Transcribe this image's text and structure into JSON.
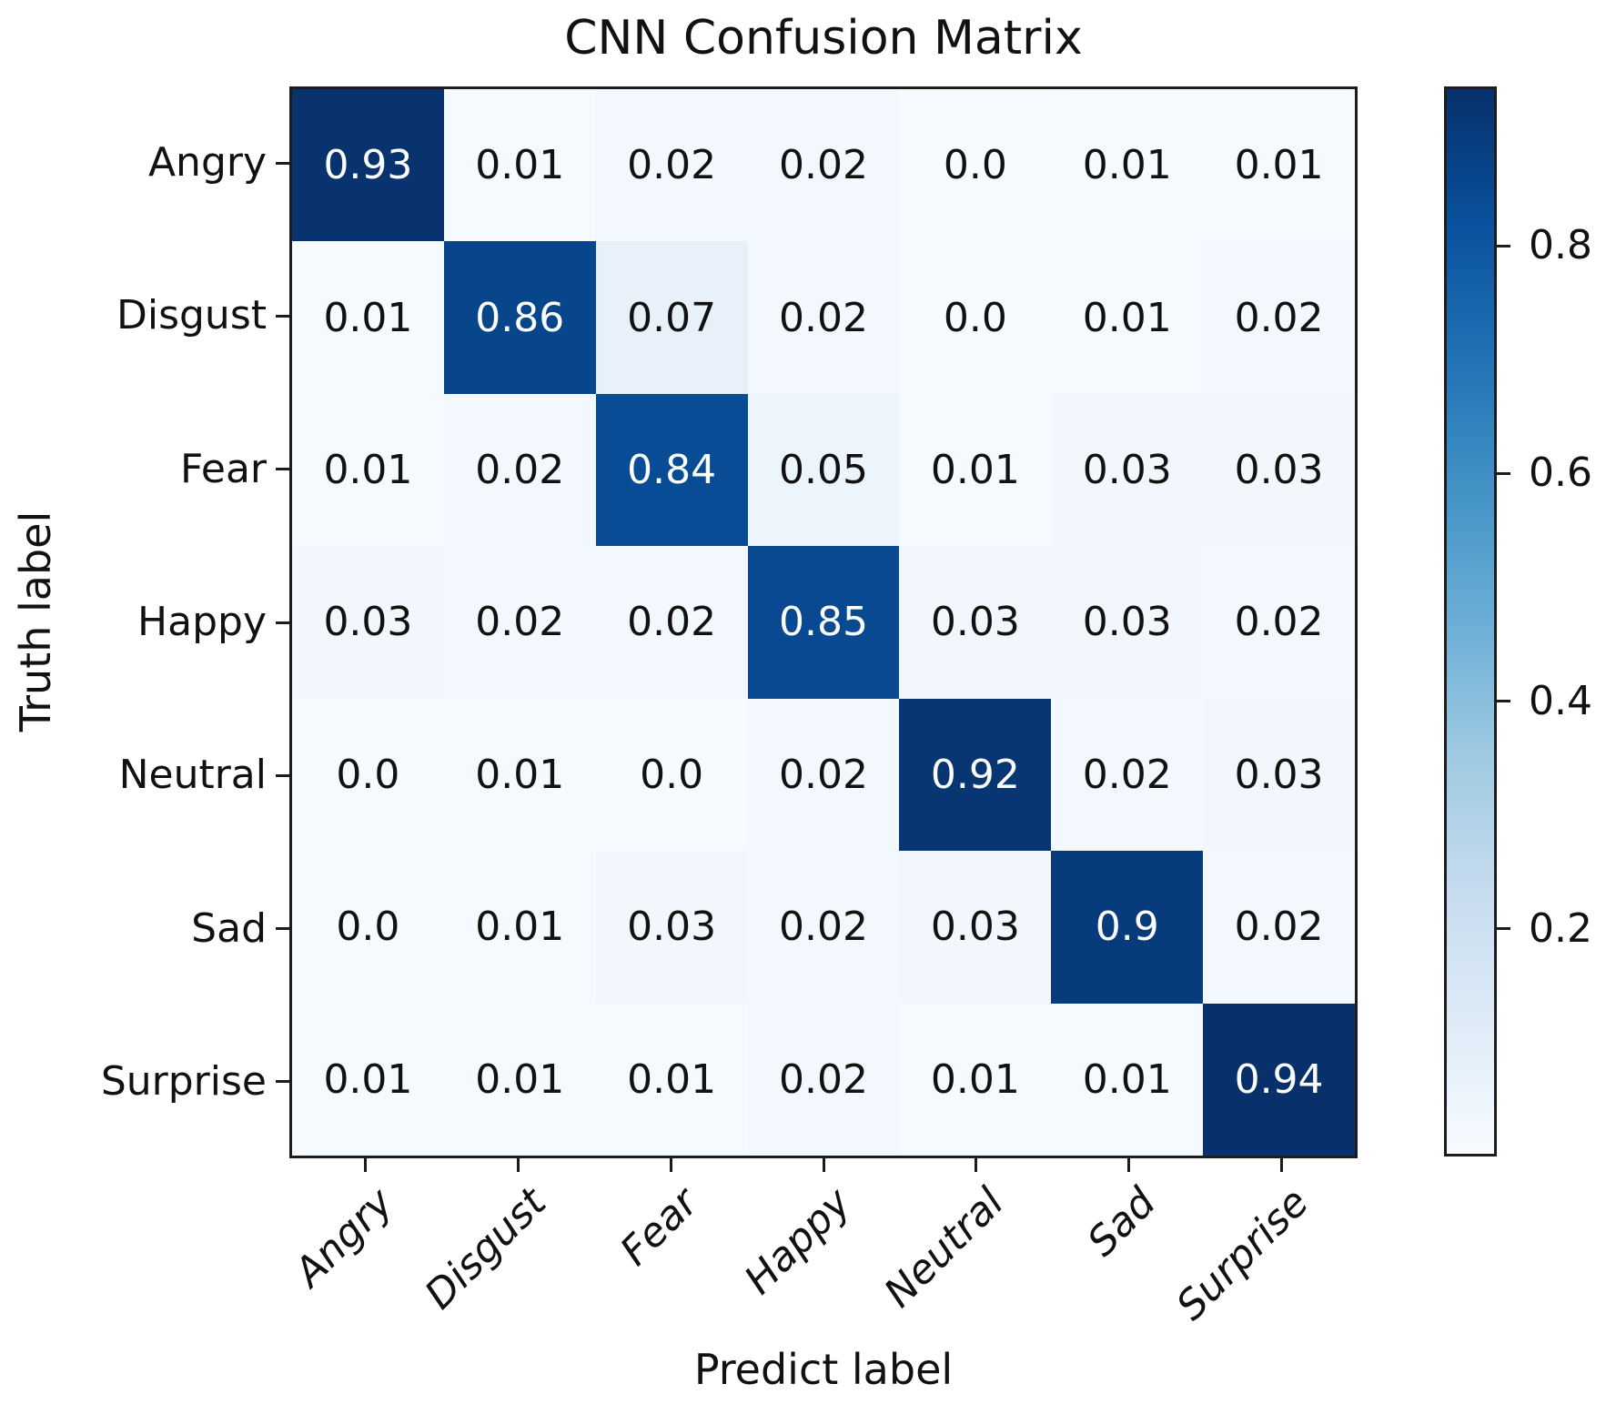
{
  "chart_data": {
    "type": "heatmap",
    "title": "CNN Confusion Matrix",
    "xlabel": "Predict label",
    "ylabel": "Truth label",
    "categories": [
      "Angry",
      "Disgust",
      "Fear",
      "Happy",
      "Neutral",
      "Sad",
      "Surprise"
    ],
    "matrix": [
      [
        "0.93",
        "0.01",
        "0.02",
        "0.02",
        "0.0",
        "0.01",
        "0.01"
      ],
      [
        "0.01",
        "0.86",
        "0.07",
        "0.02",
        "0.0",
        "0.01",
        "0.02"
      ],
      [
        "0.01",
        "0.02",
        "0.84",
        "0.05",
        "0.01",
        "0.03",
        "0.03"
      ],
      [
        "0.03",
        "0.02",
        "0.02",
        "0.85",
        "0.03",
        "0.03",
        "0.02"
      ],
      [
        "0.0",
        "0.01",
        "0.0",
        "0.02",
        "0.92",
        "0.02",
        "0.03"
      ],
      [
        "0.0",
        "0.01",
        "0.03",
        "0.02",
        "0.03",
        "0.9",
        "0.02"
      ],
      [
        "0.01",
        "0.01",
        "0.01",
        "0.02",
        "0.01",
        "0.01",
        "0.94"
      ]
    ],
    "vmin": 0,
    "vmax": 0.94,
    "colormap": "Blues",
    "cmap_stops": [
      "#f7fbff",
      "#deebf7",
      "#c6dbef",
      "#9ecae1",
      "#6baed6",
      "#4292c6",
      "#2171b5",
      "#08519c",
      "#08306b"
    ],
    "colorbar_ticks": [
      "0.8",
      "0.6",
      "0.4",
      "0.2"
    ],
    "legend_position": "right-colorbar",
    "grid": false,
    "text_color_dark": "#111111",
    "text_color_light": "#ffffff",
    "spine_color": "#1c1c1c"
  }
}
